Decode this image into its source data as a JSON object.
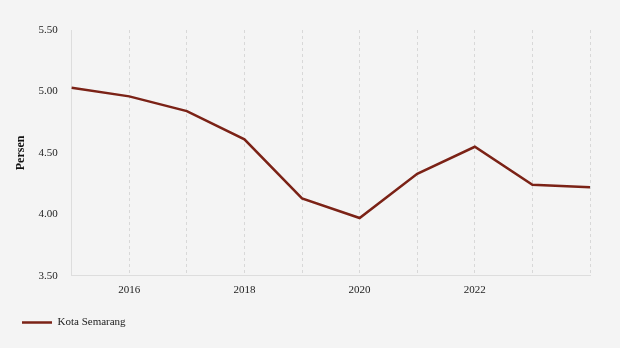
{
  "chart_data": {
    "type": "line",
    "categories": [
      null,
      "2016",
      null,
      "2018",
      null,
      "2020",
      null,
      "2022",
      null,
      null
    ],
    "series": [
      {
        "name": "Kota Semarang",
        "color": "#7b2216",
        "values": [
          5.03,
          4.96,
          4.84,
          4.61,
          4.13,
          3.97,
          4.33,
          4.55,
          4.24,
          4.22
        ]
      }
    ],
    "y_label": "Persen",
    "ylim": [
      3.5,
      5.5
    ],
    "yticks": [
      {
        "value": 3.5,
        "label": "3.50"
      },
      {
        "value": 4.0,
        "label": "4.00"
      },
      {
        "value": 4.5,
        "label": "4.50"
      },
      {
        "value": 5.0,
        "label": "5.00"
      },
      {
        "value": 5.5,
        "label": "5.50"
      }
    ],
    "grid": true,
    "legend": "bottom"
  }
}
